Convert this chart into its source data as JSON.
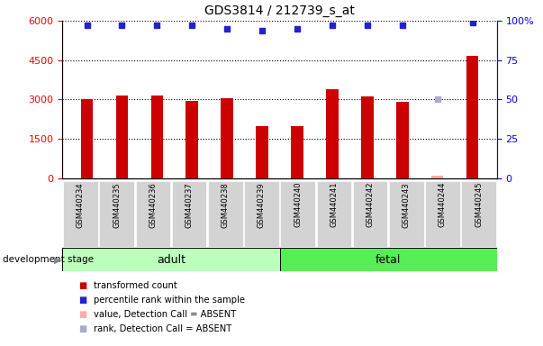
{
  "title": "GDS3814 / 212739_s_at",
  "samples": [
    "GSM440234",
    "GSM440235",
    "GSM440236",
    "GSM440237",
    "GSM440238",
    "GSM440239",
    "GSM440240",
    "GSM440241",
    "GSM440242",
    "GSM440243",
    "GSM440244",
    "GSM440245"
  ],
  "transformed_counts": [
    3000,
    3150,
    3150,
    2950,
    3050,
    2000,
    2000,
    3400,
    3100,
    2900,
    80,
    4650
  ],
  "percentile_ranks": [
    97,
    97,
    97,
    97,
    95,
    94,
    95,
    97,
    97,
    97,
    50,
    99
  ],
  "absent_value_indices": [
    10
  ],
  "absent_rank_indices": [
    10
  ],
  "bar_color": "#cc0000",
  "absent_bar_color": "#ffaaaa",
  "dot_color": "#2222cc",
  "absent_dot_color": "#aaaacc",
  "ylim_left": [
    0,
    6000
  ],
  "ylim_right": [
    0,
    100
  ],
  "yticks_left": [
    0,
    1500,
    3000,
    4500,
    6000
  ],
  "yticks_right": [
    0,
    25,
    50,
    75,
    100
  ],
  "adult_indices": [
    0,
    5
  ],
  "fetal_indices": [
    6,
    11
  ],
  "adult_label": "adult",
  "fetal_label": "fetal",
  "adult_color": "#bbffbb",
  "fetal_color": "#55ee55",
  "stage_label": "development stage",
  "legend_items": [
    {
      "label": "transformed count",
      "color": "#cc0000"
    },
    {
      "label": "percentile rank within the sample",
      "color": "#2222cc"
    },
    {
      "label": "value, Detection Call = ABSENT",
      "color": "#ffaaaa"
    },
    {
      "label": "rank, Detection Call = ABSENT",
      "color": "#aaaacc"
    }
  ],
  "fig_width": 6.03,
  "fig_height": 3.84,
  "fig_dpi": 100
}
